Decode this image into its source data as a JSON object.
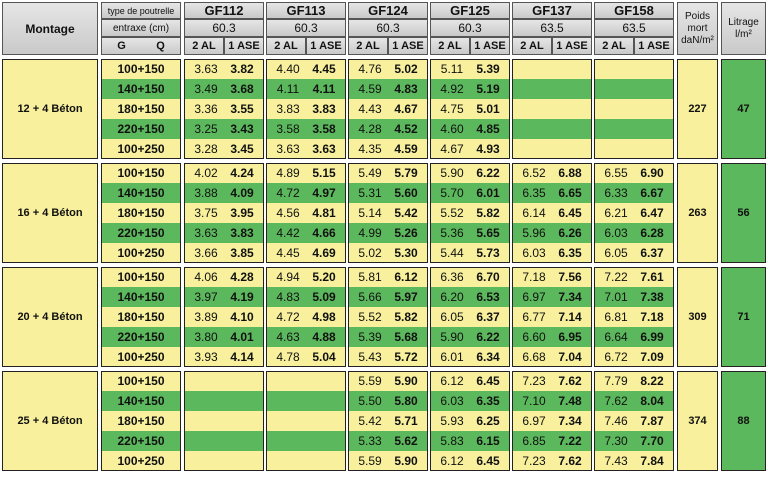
{
  "header": {
    "montage": "Montage",
    "type_label": "type de poutrelle",
    "entraxe_label": "entraxe (cm)",
    "g": "G",
    "q": "Q",
    "products": [
      {
        "name": "GF112",
        "entraxe": "60.3",
        "col1": "2 AL",
        "col2": "1 ASE"
      },
      {
        "name": "GF113",
        "entraxe": "60.3",
        "col1": "2 AL",
        "col2": "1 ASE"
      },
      {
        "name": "GF124",
        "entraxe": "60.3",
        "col1": "2 AL",
        "col2": "1 ASE"
      },
      {
        "name": "GF125",
        "entraxe": "60.3",
        "col1": "2 AL",
        "col2": "1 ASE"
      },
      {
        "name": "GF137",
        "entraxe": "63.5",
        "col1": "2 AL",
        "col2": "1 ASE"
      },
      {
        "name": "GF158",
        "entraxe": "63.5",
        "col1": "2 AL",
        "col2": "1 ASE"
      }
    ],
    "poids": [
      "Poids",
      "mort",
      "daN/m²"
    ],
    "litrage": [
      "Litrage",
      "l/m²"
    ]
  },
  "groups": [
    {
      "label": "12 + 4 Béton",
      "poids": 227,
      "litrage": 47,
      "rows": [
        {
          "gq": "100+150",
          "values": [
            "3.63",
            "3.82",
            "4.40",
            "4.45",
            "4.76",
            "5.02",
            "5.11",
            "5.39",
            null,
            null,
            null,
            null
          ]
        },
        {
          "gq": "140+150",
          "values": [
            "3.49",
            "3.68",
            "4.11",
            "4.11",
            "4.59",
            "4.83",
            "4.92",
            "5.19",
            null,
            null,
            null,
            null
          ]
        },
        {
          "gq": "180+150",
          "values": [
            "3.36",
            "3.55",
            "3.83",
            "3.83",
            "4.43",
            "4.67",
            "4.75",
            "5.01",
            null,
            null,
            null,
            null
          ]
        },
        {
          "gq": "220+150",
          "values": [
            "3.25",
            "3.43",
            "3.58",
            "3.58",
            "4.28",
            "4.52",
            "4.60",
            "4.85",
            null,
            null,
            null,
            null
          ]
        },
        {
          "gq": "100+250",
          "values": [
            "3.28",
            "3.45",
            "3.63",
            "3.63",
            "4.35",
            "4.59",
            "4.67",
            "4.93",
            null,
            null,
            null,
            null
          ]
        }
      ]
    },
    {
      "label": "16 + 4 Béton",
      "poids": 263,
      "litrage": 56,
      "rows": [
        {
          "gq": "100+150",
          "values": [
            "4.02",
            "4.24",
            "4.89",
            "5.15",
            "5.49",
            "5.79",
            "5.90",
            "6.22",
            "6.52",
            "6.88",
            "6.55",
            "6.90"
          ]
        },
        {
          "gq": "140+150",
          "values": [
            "3.88",
            "4.09",
            "4.72",
            "4.97",
            "5.31",
            "5.60",
            "5.70",
            "6.01",
            "6.35",
            "6.65",
            "6.33",
            "6.67"
          ]
        },
        {
          "gq": "180+150",
          "values": [
            "3.75",
            "3.95",
            "4.56",
            "4.81",
            "5.14",
            "5.42",
            "5.52",
            "5.82",
            "6.14",
            "6.45",
            "6.21",
            "6.47"
          ]
        },
        {
          "gq": "220+150",
          "values": [
            "3.63",
            "3.83",
            "4.42",
            "4.66",
            "4.99",
            "5.26",
            "5.36",
            "5.65",
            "5.96",
            "6.26",
            "6.03",
            "6.28"
          ]
        },
        {
          "gq": "100+250",
          "values": [
            "3.66",
            "3.85",
            "4.45",
            "4.69",
            "5.02",
            "5.30",
            "5.44",
            "5.73",
            "6.03",
            "6.35",
            "6.05",
            "6.37"
          ]
        }
      ]
    },
    {
      "label": "20 + 4 Béton",
      "poids": 309,
      "litrage": 71,
      "rows": [
        {
          "gq": "100+150",
          "values": [
            "4.06",
            "4.28",
            "4.94",
            "5.20",
            "5.81",
            "6.12",
            "6.36",
            "6.70",
            "7.18",
            "7.56",
            "7.22",
            "7.61"
          ]
        },
        {
          "gq": "140+150",
          "values": [
            "3.97",
            "4.19",
            "4.83",
            "5.09",
            "5.66",
            "5.97",
            "6.20",
            "6.53",
            "6.97",
            "7.34",
            "7.01",
            "7.38"
          ]
        },
        {
          "gq": "180+150",
          "values": [
            "3.89",
            "4.10",
            "4.72",
            "4.98",
            "5.52",
            "5.82",
            "6.05",
            "6.37",
            "6.77",
            "7.14",
            "6.81",
            "7.18"
          ]
        },
        {
          "gq": "220+150",
          "values": [
            "3.80",
            "4.01",
            "4.63",
            "4.88",
            "5.39",
            "5.68",
            "5.90",
            "6.22",
            "6.60",
            "6.95",
            "6.64",
            "6.99"
          ]
        },
        {
          "gq": "100+250",
          "values": [
            "3.93",
            "4.14",
            "4.78",
            "5.04",
            "5.43",
            "5.72",
            "6.01",
            "6.34",
            "6.68",
            "7.04",
            "6.72",
            "7.09"
          ]
        }
      ]
    },
    {
      "label": "25 + 4 Béton",
      "poids": 374,
      "litrage": 88,
      "rows": [
        {
          "gq": "100+150",
          "values": [
            null,
            null,
            null,
            null,
            "5.59",
            "5.90",
            "6.12",
            "6.45",
            "7.23",
            "7.62",
            "7.79",
            "8.22"
          ]
        },
        {
          "gq": "140+150",
          "values": [
            null,
            null,
            null,
            null,
            "5.50",
            "5.80",
            "6.03",
            "6.35",
            "7.10",
            "7.48",
            "7.62",
            "8.04"
          ]
        },
        {
          "gq": "180+150",
          "values": [
            null,
            null,
            null,
            null,
            "5.42",
            "5.71",
            "5.93",
            "6.25",
            "6.97",
            "7.34",
            "7.46",
            "7.87"
          ]
        },
        {
          "gq": "220+150",
          "values": [
            null,
            null,
            null,
            null,
            "5.33",
            "5.62",
            "5.83",
            "6.15",
            "6.85",
            "7.22",
            "7.30",
            "7.70"
          ]
        },
        {
          "gq": "100+250",
          "values": [
            null,
            null,
            null,
            null,
            "5.59",
            "5.90",
            "6.12",
            "6.45",
            "7.23",
            "7.62",
            "7.43",
            "7.84"
          ]
        }
      ]
    }
  ]
}
